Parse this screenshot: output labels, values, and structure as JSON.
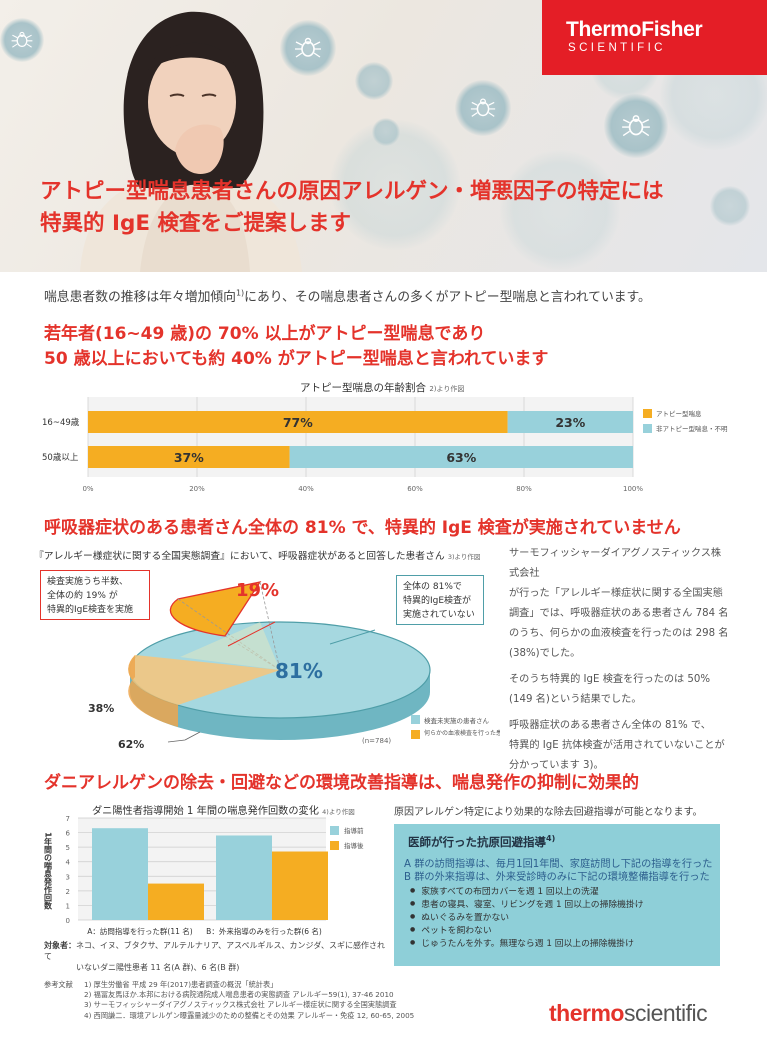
{
  "brand": {
    "top_logo_line1": "ThermoFisher",
    "top_logo_line2": "SCIENTIFIC",
    "bottom_logo_a": "thermo",
    "bottom_logo_b": "scientific",
    "accent": "#e4332b",
    "orange": "#f5ad22",
    "blue": "#98d1db"
  },
  "hero": {
    "title_line1": "アトピー型喘息患者さんの原因アレルゲン・増悪因子の特定には",
    "title_line2": "特異的 IgE 検査をご提案します"
  },
  "intro": {
    "text_before": "喘息患者数の推移は年々増加傾向",
    "ref": "1)",
    "text_after": "にあり、その喘息患者さんの多くがアトピー型喘息と言われています。"
  },
  "section1": {
    "heading_line1": "若年者(16~49 歳)の 70% 以上がアトピー型喘息であり",
    "heading_line2": "50 歳以上においても約 40% がアトピー型喘息と言われています"
  },
  "section2": {
    "heading": "呼吸器症状のある患者さん全体の 81% で、特異的 IgE 検査が実施されていません",
    "subtitle": "『アレルギー様症状に関する全国実態調査』において、呼吸器症状があると回答した患者さん",
    "subtitle_ref": "3)より作図",
    "callout_red": [
      "検査実施うち半数、",
      "全体の約 19% が",
      "特異的IgE検査を実施"
    ],
    "callout_blue": [
      "全体の 81%で",
      "特異的IgE検査が",
      "実施されていない"
    ],
    "paragraphs": [
      [
        "サーモフィッシャーダイアグノスティックス株式会社",
        "が行った「アレルギー様症状に関する全国実態",
        "調査」では、呼吸器症状のある患者さん 784 名",
        "のうち、何らかの血液検査を行ったのは 298 名",
        "(38%)でした。"
      ],
      [
        "そのうち特異的 IgE 検査を行ったのは 50%",
        "(149 名)という結果でした。"
      ],
      [
        "呼吸器症状のある患者さん全体の 81% で、",
        "特異的 IgE 抗体検査が活用されていないことが",
        "分かっています 3)。"
      ]
    ]
  },
  "section3": {
    "heading": "ダニアレルゲンの除去・回避などの環境改善指導は、喘息発作の抑制に効果的",
    "right_intro": "原因アレルゲン特定により効果的な除去回避指導が可能となります。",
    "target_label": "対象者：",
    "target_line1": "ネコ、イヌ、ブタクサ、アルテルナリア、アスペルギルス、カンジダ、スギに感作されて",
    "target_line2": "いないダニ陽性患者 11 名(A 群)、6 名(B 群)",
    "info_title": "医師が行った抗原回避指導",
    "info_title_ref": "4)",
    "info_line1": "A 群の訪問指導は、毎月1回1年間、家庭訪問し下記の指導を行った",
    "info_line2": "B 群の外来指導は、外来受診時のみに下記の環境整備指導を行った",
    "info_items": [
      "家族すべての布団カバーを週 1 回以上の洗濯",
      "患者の寝具、寝室、リビングを週 1 回以上の掃除機掛け",
      "ぬいぐるみを置かない",
      "ペットを飼わない",
      "じゅうたんを外す。無理なら週 1 回以上の掃除機掛け"
    ]
  },
  "references": {
    "label": "参考文献",
    "items": [
      "1) 厚生労働省 平成 29 年(2017)患者調査の概況「統計表」",
      "2) 福冨友馬ほか.本邦における病院通院成人喘息患者の実態調査 アレルギー59(1), 37-46 2010",
      "3) サーモフィッシャーダイアグノスティックス株式会社 アレルギー様症状に関する全国実態調査",
      "4) 西岡謙二．環境アレルゲン曝露量減少のための整備とその効果 アレルギー・免疫 12, 60-65, 2005"
    ]
  },
  "chart_data": [
    {
      "type": "bar",
      "orientation": "horizontal-stacked",
      "title": "アトピー型喘息の年齢割合",
      "title_ref": "2)より作図",
      "categories": [
        "16~49歳",
        "50歳以上"
      ],
      "series": [
        {
          "name": "アトピー型喘息",
          "values": [
            77,
            37
          ],
          "labels": [
            "77%",
            "37%"
          ],
          "color": "#f5ad22"
        },
        {
          "name": "非アトピー型喘息・不明",
          "values": [
            23,
            63
          ],
          "labels": [
            "23%",
            "63%"
          ],
          "color": "#98d1db"
        }
      ],
      "xlim": [
        0,
        100
      ],
      "xticks": [
        "0%",
        "20%",
        "40%",
        "60%",
        "80%",
        "100%"
      ],
      "legend": "right",
      "grid": true
    },
    {
      "type": "pie",
      "slices": [
        {
          "name": "検査未実施の患者さん",
          "value": 62,
          "label": "62%",
          "color": "#98d1db"
        },
        {
          "name": "何らかの血液検査を行った患者さん",
          "value": 38,
          "label": "38%",
          "color": "#f5ad22"
        }
      ],
      "sub_slice": {
        "value": 19,
        "label": "19%"
      },
      "combined_label": "81%",
      "legend_items": [
        "検査未実施の患者さん",
        "何らかの血液検査を行った患者さん"
      ],
      "n_label": "(n=784)"
    },
    {
      "type": "bar",
      "title": "ダニ陽性者指導開始 1 年間の喘息発作回数の変化",
      "title_ref": "4)より作図",
      "ylabel": "1年間の喘息発作回数",
      "categories": [
        "A：訪問指導を行った群(11 名)",
        "B：外来指導のみを行った群(6 名)"
      ],
      "series": [
        {
          "name": "指導前",
          "values": [
            6.3,
            5.8
          ],
          "color": "#98d1db"
        },
        {
          "name": "指導後",
          "values": [
            2.5,
            4.7
          ],
          "color": "#f5ad22"
        }
      ],
      "ylim": [
        0,
        7
      ],
      "yticks": [
        "0",
        "1",
        "2",
        "3",
        "4",
        "5",
        "6",
        "7"
      ],
      "grid": true,
      "legend": "top-right"
    }
  ]
}
